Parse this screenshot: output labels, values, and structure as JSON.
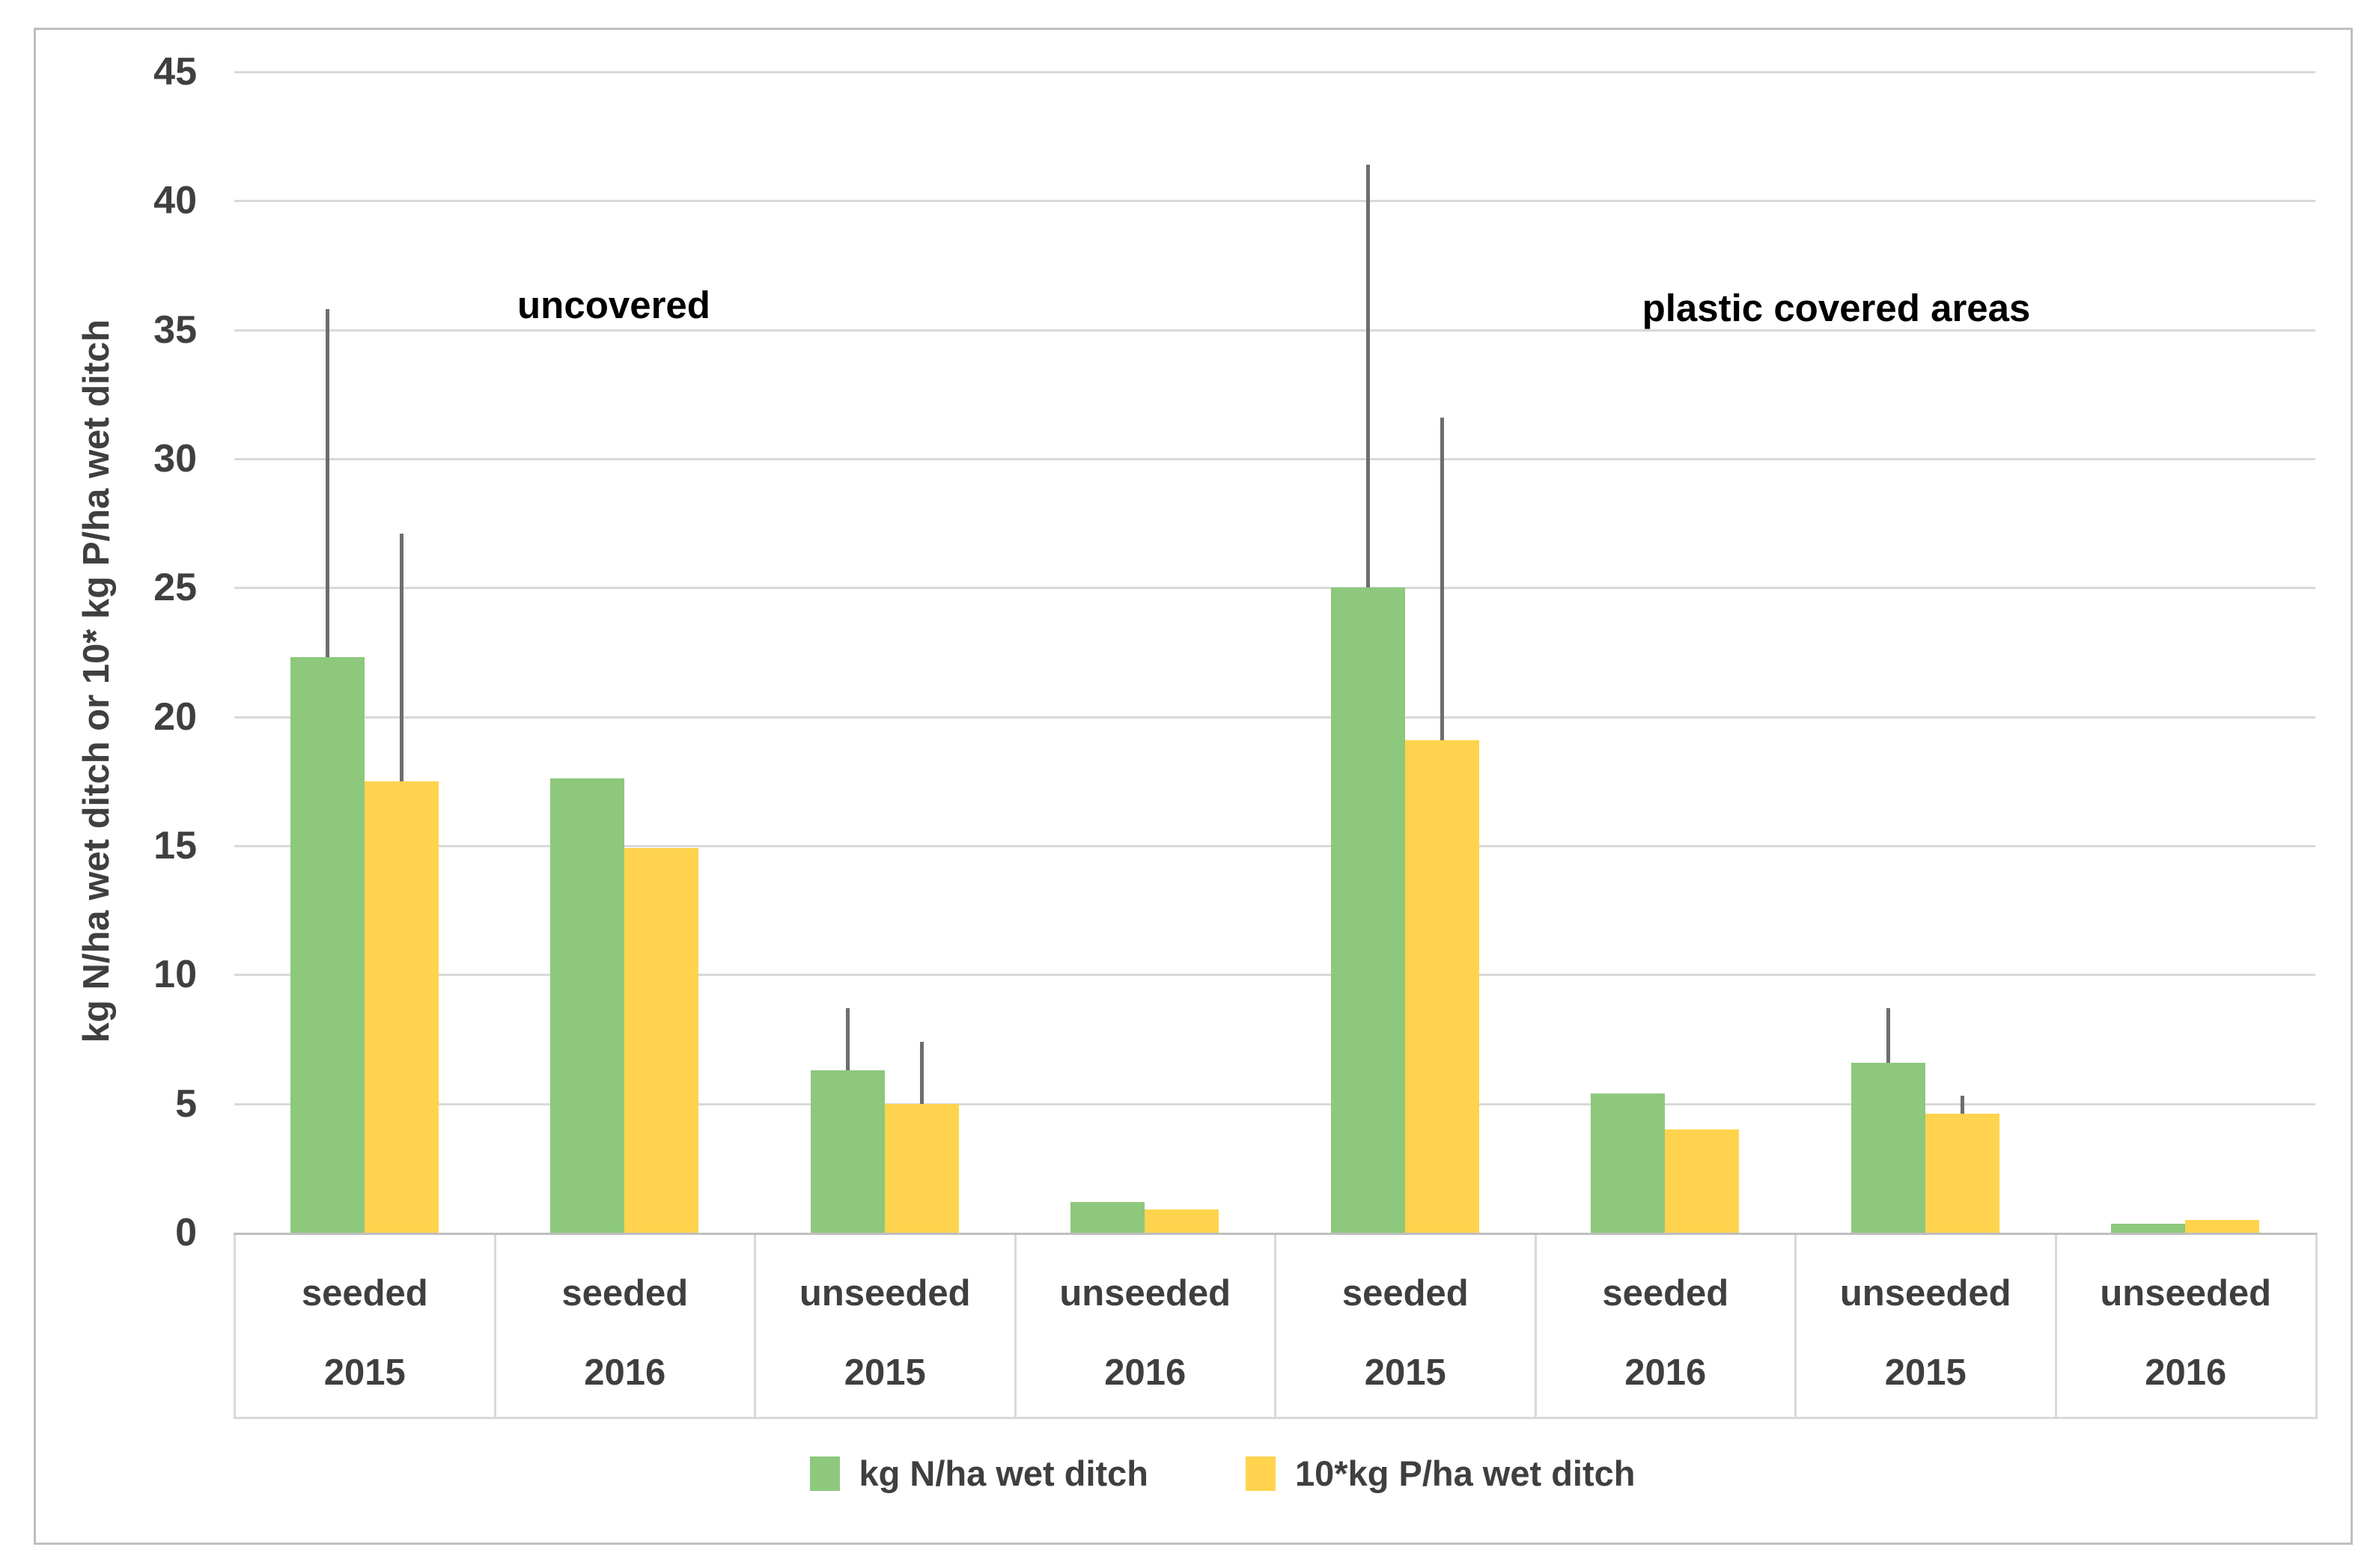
{
  "y_axis": {
    "title": "kg N/ha wet ditch or 10* kg P/ha wet ditch",
    "ticks": [
      0,
      5,
      10,
      15,
      20,
      25,
      30,
      35,
      40,
      45
    ],
    "min": 0,
    "max": 45
  },
  "annotations": {
    "left_section": "uncovered",
    "right_section": "plastic covered areas"
  },
  "colors": {
    "nitrogen_green": "#8dc87c",
    "phosphorus_yellow": "#ffd34d",
    "error_bar_gray": "#6e6e6e",
    "gridline_gray": "#d9d9d9",
    "border_gray": "#bfbfbf",
    "label_gray": "#3f3f3f"
  },
  "chart_data": {
    "type": "bar",
    "title": "",
    "xlabel": "",
    "ylabel": "kg N/ha wet ditch or 10* kg P/ha wet ditch",
    "ylim": [
      0,
      45
    ],
    "grid": true,
    "legend_position": "bottom",
    "categories": [
      {
        "treatment": "seeded",
        "year": "2015",
        "section": "uncovered"
      },
      {
        "treatment": "seeded",
        "year": "2016",
        "section": "uncovered"
      },
      {
        "treatment": "unseeded",
        "year": "2015",
        "section": "uncovered"
      },
      {
        "treatment": "unseeded",
        "year": "2016",
        "section": "uncovered"
      },
      {
        "treatment": "seeded",
        "year": "2015",
        "section": "plastic covered areas"
      },
      {
        "treatment": "seeded",
        "year": "2016",
        "section": "plastic covered areas"
      },
      {
        "treatment": "unseeded",
        "year": "2015",
        "section": "plastic covered areas"
      },
      {
        "treatment": "unseeded",
        "year": "2016",
        "section": "plastic covered areas"
      }
    ],
    "series": [
      {
        "name": "kg N/ha wet ditch",
        "color": "#8dc87c",
        "values": [
          22.3,
          17.6,
          6.3,
          1.2,
          25.0,
          5.4,
          6.6,
          0.35
        ],
        "error_bar_top": [
          35.8,
          null,
          8.7,
          null,
          41.4,
          null,
          8.7,
          null
        ]
      },
      {
        "name": "10*kg P/ha wet ditch",
        "color": "#ffd34d",
        "values": [
          17.5,
          14.9,
          5.0,
          0.9,
          19.1,
          4.0,
          4.6,
          0.5
        ],
        "error_bar_top": [
          27.1,
          null,
          7.4,
          null,
          31.6,
          null,
          5.3,
          null
        ]
      }
    ]
  }
}
